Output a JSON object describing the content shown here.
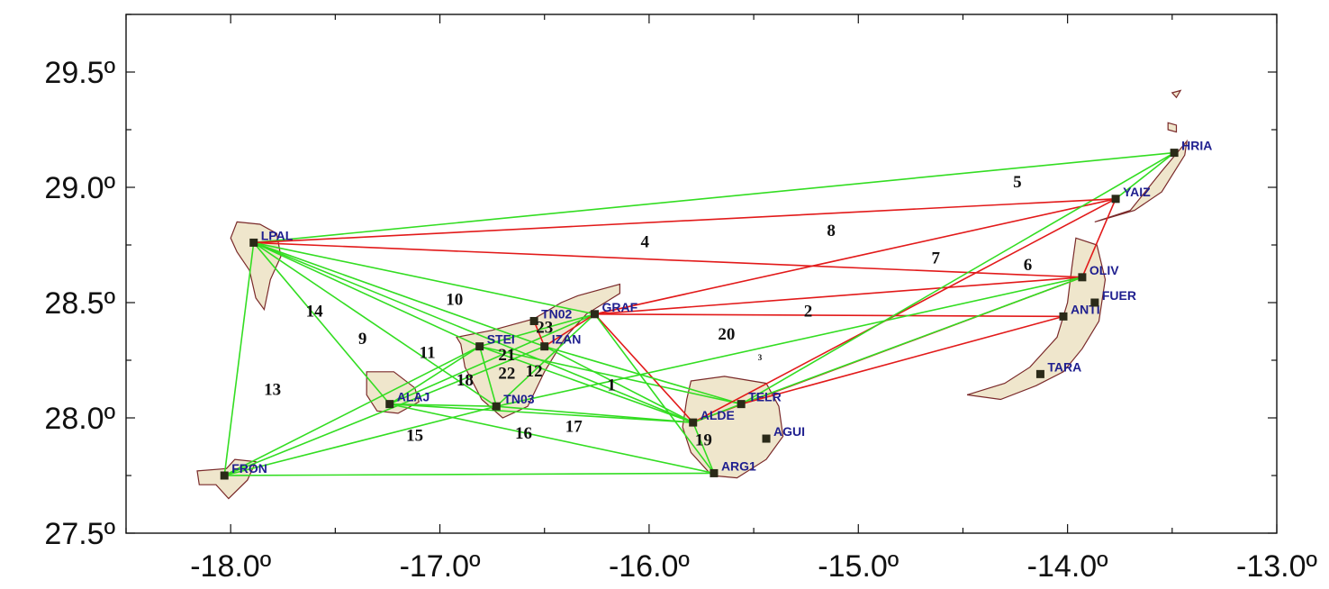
{
  "map": {
    "lon_range": [
      -18.5,
      -13.0
    ],
    "lat_range": [
      27.5,
      29.75
    ],
    "x_ticks": [
      {
        "value": -18.0,
        "label": "-18.0º"
      },
      {
        "value": -17.0,
        "label": "-17.0º"
      },
      {
        "value": -16.0,
        "label": "-16.0º"
      },
      {
        "value": -15.0,
        "label": "-15.0º"
      },
      {
        "value": -14.0,
        "label": "-14.0º"
      },
      {
        "value": -13.0,
        "label": "-13.0º"
      }
    ],
    "y_ticks": [
      {
        "value": 27.5,
        "label": "27.5º"
      },
      {
        "value": 28.0,
        "label": "28.0º"
      },
      {
        "value": 28.5,
        "label": "28.5º"
      },
      {
        "value": 29.0,
        "label": "29.0º"
      },
      {
        "value": 29.5,
        "label": "29.5º"
      }
    ],
    "colors": {
      "land": "#efe6cc",
      "coast": "#7a2a2a",
      "green_link": "#33dd22",
      "red_link": "#e21a1a",
      "station": "#2a2a18",
      "station_label": "#1f1f8f"
    },
    "islands": [
      {
        "name": "la-palma",
        "points": [
          [
            -17.97,
            28.85
          ],
          [
            -17.86,
            28.84
          ],
          [
            -17.78,
            28.8
          ],
          [
            -17.76,
            28.7
          ],
          [
            -17.81,
            28.6
          ],
          [
            -17.84,
            28.47
          ],
          [
            -17.88,
            28.52
          ],
          [
            -17.91,
            28.64
          ],
          [
            -17.97,
            28.72
          ],
          [
            -18.0,
            28.78
          ]
        ]
      },
      {
        "name": "la-gomera",
        "points": [
          [
            -17.35,
            28.2
          ],
          [
            -17.22,
            28.2
          ],
          [
            -17.12,
            28.13
          ],
          [
            -17.1,
            28.07
          ],
          [
            -17.2,
            28.02
          ],
          [
            -17.3,
            28.03
          ],
          [
            -17.35,
            28.1
          ]
        ]
      },
      {
        "name": "el-hierro",
        "points": [
          [
            -18.16,
            27.77
          ],
          [
            -18.02,
            27.78
          ],
          [
            -17.98,
            27.82
          ],
          [
            -17.88,
            27.81
          ],
          [
            -17.92,
            27.73
          ],
          [
            -18.01,
            27.65
          ],
          [
            -18.07,
            27.71
          ],
          [
            -18.15,
            27.71
          ]
        ]
      },
      {
        "name": "tenerife",
        "points": [
          [
            -16.92,
            28.35
          ],
          [
            -16.75,
            28.38
          ],
          [
            -16.55,
            28.43
          ],
          [
            -16.42,
            28.5
          ],
          [
            -16.34,
            28.53
          ],
          [
            -16.14,
            28.58
          ],
          [
            -16.14,
            28.54
          ],
          [
            -16.3,
            28.45
          ],
          [
            -16.4,
            28.35
          ],
          [
            -16.5,
            28.2
          ],
          [
            -16.58,
            28.05
          ],
          [
            -16.7,
            28.0
          ],
          [
            -16.8,
            28.08
          ],
          [
            -16.88,
            28.22
          ],
          [
            -16.9,
            28.32
          ]
        ]
      },
      {
        "name": "gran-canaria",
        "points": [
          [
            -15.8,
            28.16
          ],
          [
            -15.64,
            28.18
          ],
          [
            -15.44,
            28.15
          ],
          [
            -15.38,
            28.05
          ],
          [
            -15.36,
            27.92
          ],
          [
            -15.44,
            27.82
          ],
          [
            -15.58,
            27.74
          ],
          [
            -15.7,
            27.75
          ],
          [
            -15.8,
            27.85
          ],
          [
            -15.84,
            27.96
          ],
          [
            -15.82,
            28.08
          ]
        ]
      },
      {
        "name": "fuerteventura",
        "points": [
          [
            -13.96,
            28.78
          ],
          [
            -13.86,
            28.75
          ],
          [
            -13.82,
            28.6
          ],
          [
            -13.85,
            28.42
          ],
          [
            -13.93,
            28.3
          ],
          [
            -14.02,
            28.2
          ],
          [
            -14.15,
            28.14
          ],
          [
            -14.32,
            28.08
          ],
          [
            -14.48,
            28.1
          ],
          [
            -14.3,
            28.15
          ],
          [
            -14.18,
            28.22
          ],
          [
            -14.05,
            28.35
          ],
          [
            -14.0,
            28.5
          ],
          [
            -13.98,
            28.65
          ]
        ]
      },
      {
        "name": "lanzarote",
        "points": [
          [
            -13.87,
            28.85
          ],
          [
            -13.7,
            28.9
          ],
          [
            -13.55,
            29.07
          ],
          [
            -13.43,
            29.2
          ],
          [
            -13.44,
            29.14
          ],
          [
            -13.55,
            28.98
          ],
          [
            -13.68,
            28.9
          ],
          [
            -13.83,
            28.86
          ]
        ]
      },
      {
        "name": "la-graciosa",
        "points": [
          [
            -13.52,
            29.28
          ],
          [
            -13.48,
            29.27
          ],
          [
            -13.48,
            29.24
          ],
          [
            -13.52,
            29.25
          ]
        ]
      },
      {
        "name": "alegranza",
        "points": [
          [
            -13.5,
            29.41
          ],
          [
            -13.46,
            29.42
          ],
          [
            -13.48,
            29.39
          ]
        ]
      }
    ],
    "stations": [
      {
        "code": "LPAL",
        "lon": -17.89,
        "lat": 28.76
      },
      {
        "code": "STEI",
        "lon": -16.81,
        "lat": 28.31
      },
      {
        "code": "TN02",
        "lon": -16.55,
        "lat": 28.42
      },
      {
        "code": "GRAF",
        "lon": -16.26,
        "lat": 28.45
      },
      {
        "code": "IZAN",
        "lon": -16.5,
        "lat": 28.31
      },
      {
        "code": "TN03",
        "lon": -16.73,
        "lat": 28.05
      },
      {
        "code": "ALAJ",
        "lon": -17.24,
        "lat": 28.06
      },
      {
        "code": "FRON",
        "lon": -18.03,
        "lat": 27.75
      },
      {
        "code": "ALDE",
        "lon": -15.79,
        "lat": 27.98
      },
      {
        "code": "TELR",
        "lon": -15.56,
        "lat": 28.06
      },
      {
        "code": "AGUI",
        "lon": -15.44,
        "lat": 27.91
      },
      {
        "code": "ARG1",
        "lon": -15.69,
        "lat": 27.76
      },
      {
        "code": "OLIV",
        "lon": -13.93,
        "lat": 28.61
      },
      {
        "code": "ANTI",
        "lon": -14.02,
        "lat": 28.44
      },
      {
        "code": "FUER",
        "lon": -13.87,
        "lat": 28.5
      },
      {
        "code": "TARA",
        "lon": -14.13,
        "lat": 28.19
      },
      {
        "code": "YAIZ",
        "lon": -13.77,
        "lat": 28.95
      },
      {
        "code": "HRIA",
        "lon": -13.49,
        "lat": 29.15
      }
    ],
    "links": [
      {
        "from": "LPAL",
        "to": "HRIA",
        "color": "green"
      },
      {
        "from": "LPAL",
        "to": "OLIV",
        "color": "red"
      },
      {
        "from": "LPAL",
        "to": "GRAF",
        "color": "green"
      },
      {
        "from": "LPAL",
        "to": "STEI",
        "color": "green"
      },
      {
        "from": "LPAL",
        "to": "IZAN",
        "color": "green"
      },
      {
        "from": "LPAL",
        "to": "TN03",
        "color": "green"
      },
      {
        "from": "LPAL",
        "to": "ALDE",
        "color": "green"
      },
      {
        "from": "LPAL",
        "to": "ALAJ",
        "color": "green"
      },
      {
        "from": "LPAL",
        "to": "FRON",
        "color": "green"
      },
      {
        "from": "FRON",
        "to": "STEI",
        "color": "green"
      },
      {
        "from": "FRON",
        "to": "IZAN",
        "color": "green"
      },
      {
        "from": "FRON",
        "to": "TN03",
        "color": "green"
      },
      {
        "from": "FRON",
        "to": "ARG1",
        "color": "green"
      },
      {
        "from": "ALAJ",
        "to": "STEI",
        "color": "green"
      },
      {
        "from": "ALAJ",
        "to": "GRAF",
        "color": "green"
      },
      {
        "from": "ALAJ",
        "to": "TN03",
        "color": "green"
      },
      {
        "from": "ALAJ",
        "to": "ALDE",
        "color": "green"
      },
      {
        "from": "ALAJ",
        "to": "ARG1",
        "color": "green"
      },
      {
        "from": "STEI",
        "to": "GRAF",
        "color": "green"
      },
      {
        "from": "STEI",
        "to": "TN03",
        "color": "green"
      },
      {
        "from": "STEI",
        "to": "ALDE",
        "color": "green"
      },
      {
        "from": "STEI",
        "to": "TELR",
        "color": "green"
      },
      {
        "from": "TN02",
        "to": "IZAN",
        "color": "red"
      },
      {
        "from": "GRAF",
        "to": "IZAN",
        "color": "red"
      },
      {
        "from": "GRAF",
        "to": "ANTI",
        "color": "red"
      },
      {
        "from": "GRAF",
        "to": "YAIZ",
        "color": "red"
      },
      {
        "from": "GRAF",
        "to": "OLIV",
        "color": "red"
      },
      {
        "from": "GRAF",
        "to": "ALDE",
        "color": "red"
      },
      {
        "from": "GRAF",
        "to": "ARG1",
        "color": "green"
      },
      {
        "from": "GRAF",
        "to": "TN03",
        "color": "green"
      },
      {
        "from": "TN03",
        "to": "ALDE",
        "color": "green"
      },
      {
        "from": "TN03",
        "to": "OLIV",
        "color": "green"
      },
      {
        "from": "IZAN",
        "to": "TELR",
        "color": "green"
      },
      {
        "from": "IZAN",
        "to": "ALDE",
        "color": "green"
      },
      {
        "from": "ALDE",
        "to": "YAIZ",
        "color": "red"
      },
      {
        "from": "ALDE",
        "to": "OLIV",
        "color": "red"
      },
      {
        "from": "ALDE",
        "to": "ARG1",
        "color": "green"
      },
      {
        "from": "ALDE",
        "to": "TELR",
        "color": "green"
      },
      {
        "from": "TELR",
        "to": "HRIA",
        "color": "green"
      },
      {
        "from": "TELR",
        "to": "OLIV",
        "color": "green"
      },
      {
        "from": "TELR",
        "to": "ANTI",
        "color": "red"
      },
      {
        "from": "OLIV",
        "to": "YAIZ",
        "color": "red"
      },
      {
        "from": "YAIZ",
        "to": "HRIA",
        "color": "green"
      },
      {
        "from": "YAIZ",
        "to": "LPAL",
        "color": "red"
      }
    ],
    "path_numbers": [
      {
        "text": "1",
        "lon": -16.18,
        "lat": 28.12
      },
      {
        "text": "2",
        "lon": -15.24,
        "lat": 28.44
      },
      {
        "text": "3",
        "lon": -15.47,
        "lat": 28.25,
        "small": true
      },
      {
        "text": "4",
        "lon": -16.02,
        "lat": 28.74
      },
      {
        "text": "5",
        "lon": -14.24,
        "lat": 29.0
      },
      {
        "text": "6",
        "lon": -14.19,
        "lat": 28.64
      },
      {
        "text": "7",
        "lon": -14.63,
        "lat": 28.67
      },
      {
        "text": "8",
        "lon": -15.13,
        "lat": 28.79
      },
      {
        "text": "9",
        "lon": -17.37,
        "lat": 28.32
      },
      {
        "text": "10",
        "lon": -16.93,
        "lat": 28.49
      },
      {
        "text": "11",
        "lon": -17.06,
        "lat": 28.26
      },
      {
        "text": "12",
        "lon": -16.55,
        "lat": 28.18
      },
      {
        "text": "13",
        "lon": -17.8,
        "lat": 28.1
      },
      {
        "text": "14",
        "lon": -17.6,
        "lat": 28.44
      },
      {
        "text": "15",
        "lon": -17.12,
        "lat": 27.9
      },
      {
        "text": "16",
        "lon": -16.6,
        "lat": 27.91
      },
      {
        "text": "17",
        "lon": -16.36,
        "lat": 27.94
      },
      {
        "text": "18",
        "lon": -16.88,
        "lat": 28.14
      },
      {
        "text": "19",
        "lon": -15.74,
        "lat": 27.88
      },
      {
        "text": "20",
        "lon": -15.63,
        "lat": 28.34
      },
      {
        "text": "21",
        "lon": -16.68,
        "lat": 28.25
      },
      {
        "text": "22",
        "lon": -16.68,
        "lat": 28.17
      },
      {
        "text": "23",
        "lon": -16.5,
        "lat": 28.37
      }
    ]
  }
}
